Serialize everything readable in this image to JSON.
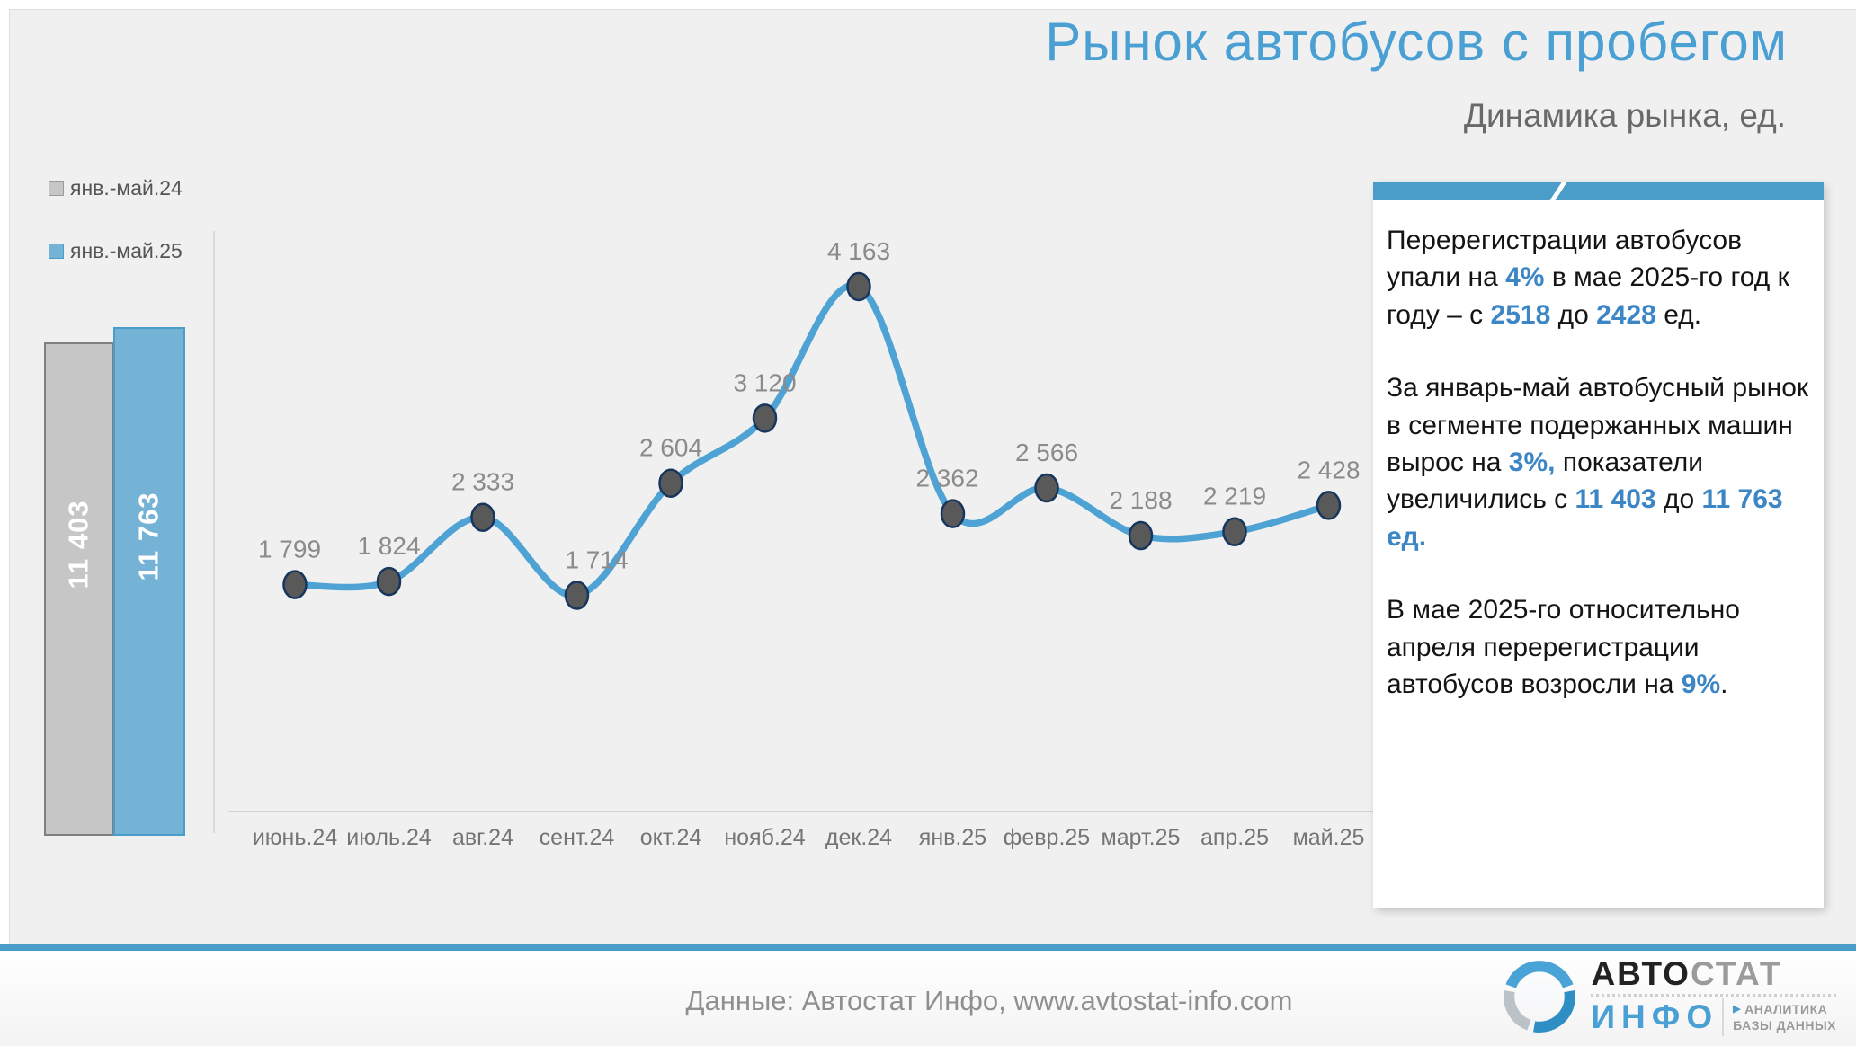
{
  "title": "Рынок автобусов с пробегом",
  "subtitle": "Динамика рынка, ед.",
  "colors": {
    "accent_blue": "#4a9cc9",
    "line_blue": "#4fa3d4",
    "bar_blue": "#74b2d6",
    "bar_gray": "#c6c6c7",
    "marker_fill": "#595959",
    "marker_stroke": "#17365d",
    "highlight_text": "#3d86c6",
    "label_gray": "#8b8b8b"
  },
  "legend": {
    "items": [
      {
        "label": "янв.-май.24",
        "color": "#c6c6c7"
      },
      {
        "label": "янв.-май.25",
        "color": "#74b2d6"
      }
    ]
  },
  "chart_data": [
    {
      "type": "bar",
      "title": "Итог за январь-май, ед.",
      "categories": [
        "янв.-май.24",
        "янв.-май.25"
      ],
      "values": [
        11403,
        11763
      ],
      "labels": [
        "11 403",
        "11 763"
      ],
      "ylim": [
        0,
        11763
      ],
      "legend_position": "top-left"
    },
    {
      "type": "line",
      "title": "Динамика рынка, ед.",
      "categories": [
        "июнь.24",
        "июль.24",
        "авг.24",
        "сент.24",
        "окт.24",
        "нояб.24",
        "дек.24",
        "янв.25",
        "февр.25",
        "март.25",
        "апр.25",
        "май.25"
      ],
      "values": [
        1799,
        1824,
        2333,
        1714,
        2604,
        3120,
        4163,
        2362,
        2566,
        2188,
        2219,
        2428
      ],
      "labels": [
        "1 799",
        "1 824",
        "2 333",
        "1 714",
        "2 604",
        "3 120",
        "4 163",
        "2 362",
        "2 566",
        "2 188",
        "2 219",
        "2 428"
      ],
      "label_dx": [
        -6,
        0,
        0,
        22,
        0,
        0,
        0,
        -6,
        0,
        0,
        0,
        0
      ],
      "xlabel": "",
      "ylabel": "",
      "ylim": [
        0,
        4163
      ],
      "grid": false
    }
  ],
  "panel": {
    "paragraphs": [
      {
        "parts": [
          "Перерегистрации автобусов упали на ",
          "4%",
          " в мае 2025-го год к году – с ",
          "2518",
          " до ",
          "2428",
          " ед."
        ]
      },
      {
        "parts": [
          "За январь-май автобусный рынок в сегменте подержанных машин вырос на ",
          "3%,",
          " показатели увеличились с ",
          "11 403",
          " до ",
          "11 763 ед."
        ]
      },
      {
        "parts": [
          "В мае 2025-го относительно апреля перерегистрации автобусов возросли на ",
          "9%",
          "."
        ]
      }
    ]
  },
  "footer": {
    "source": "Данные: Автостат Инфо, www.avtostat-info.com"
  },
  "logo": {
    "brand_1": "АВТО",
    "brand_2": "СТАТ",
    "name": "ИНФО",
    "tagline_1": "АНАЛИТИКА",
    "tagline_2": "БАЗЫ ДАННЫХ"
  }
}
